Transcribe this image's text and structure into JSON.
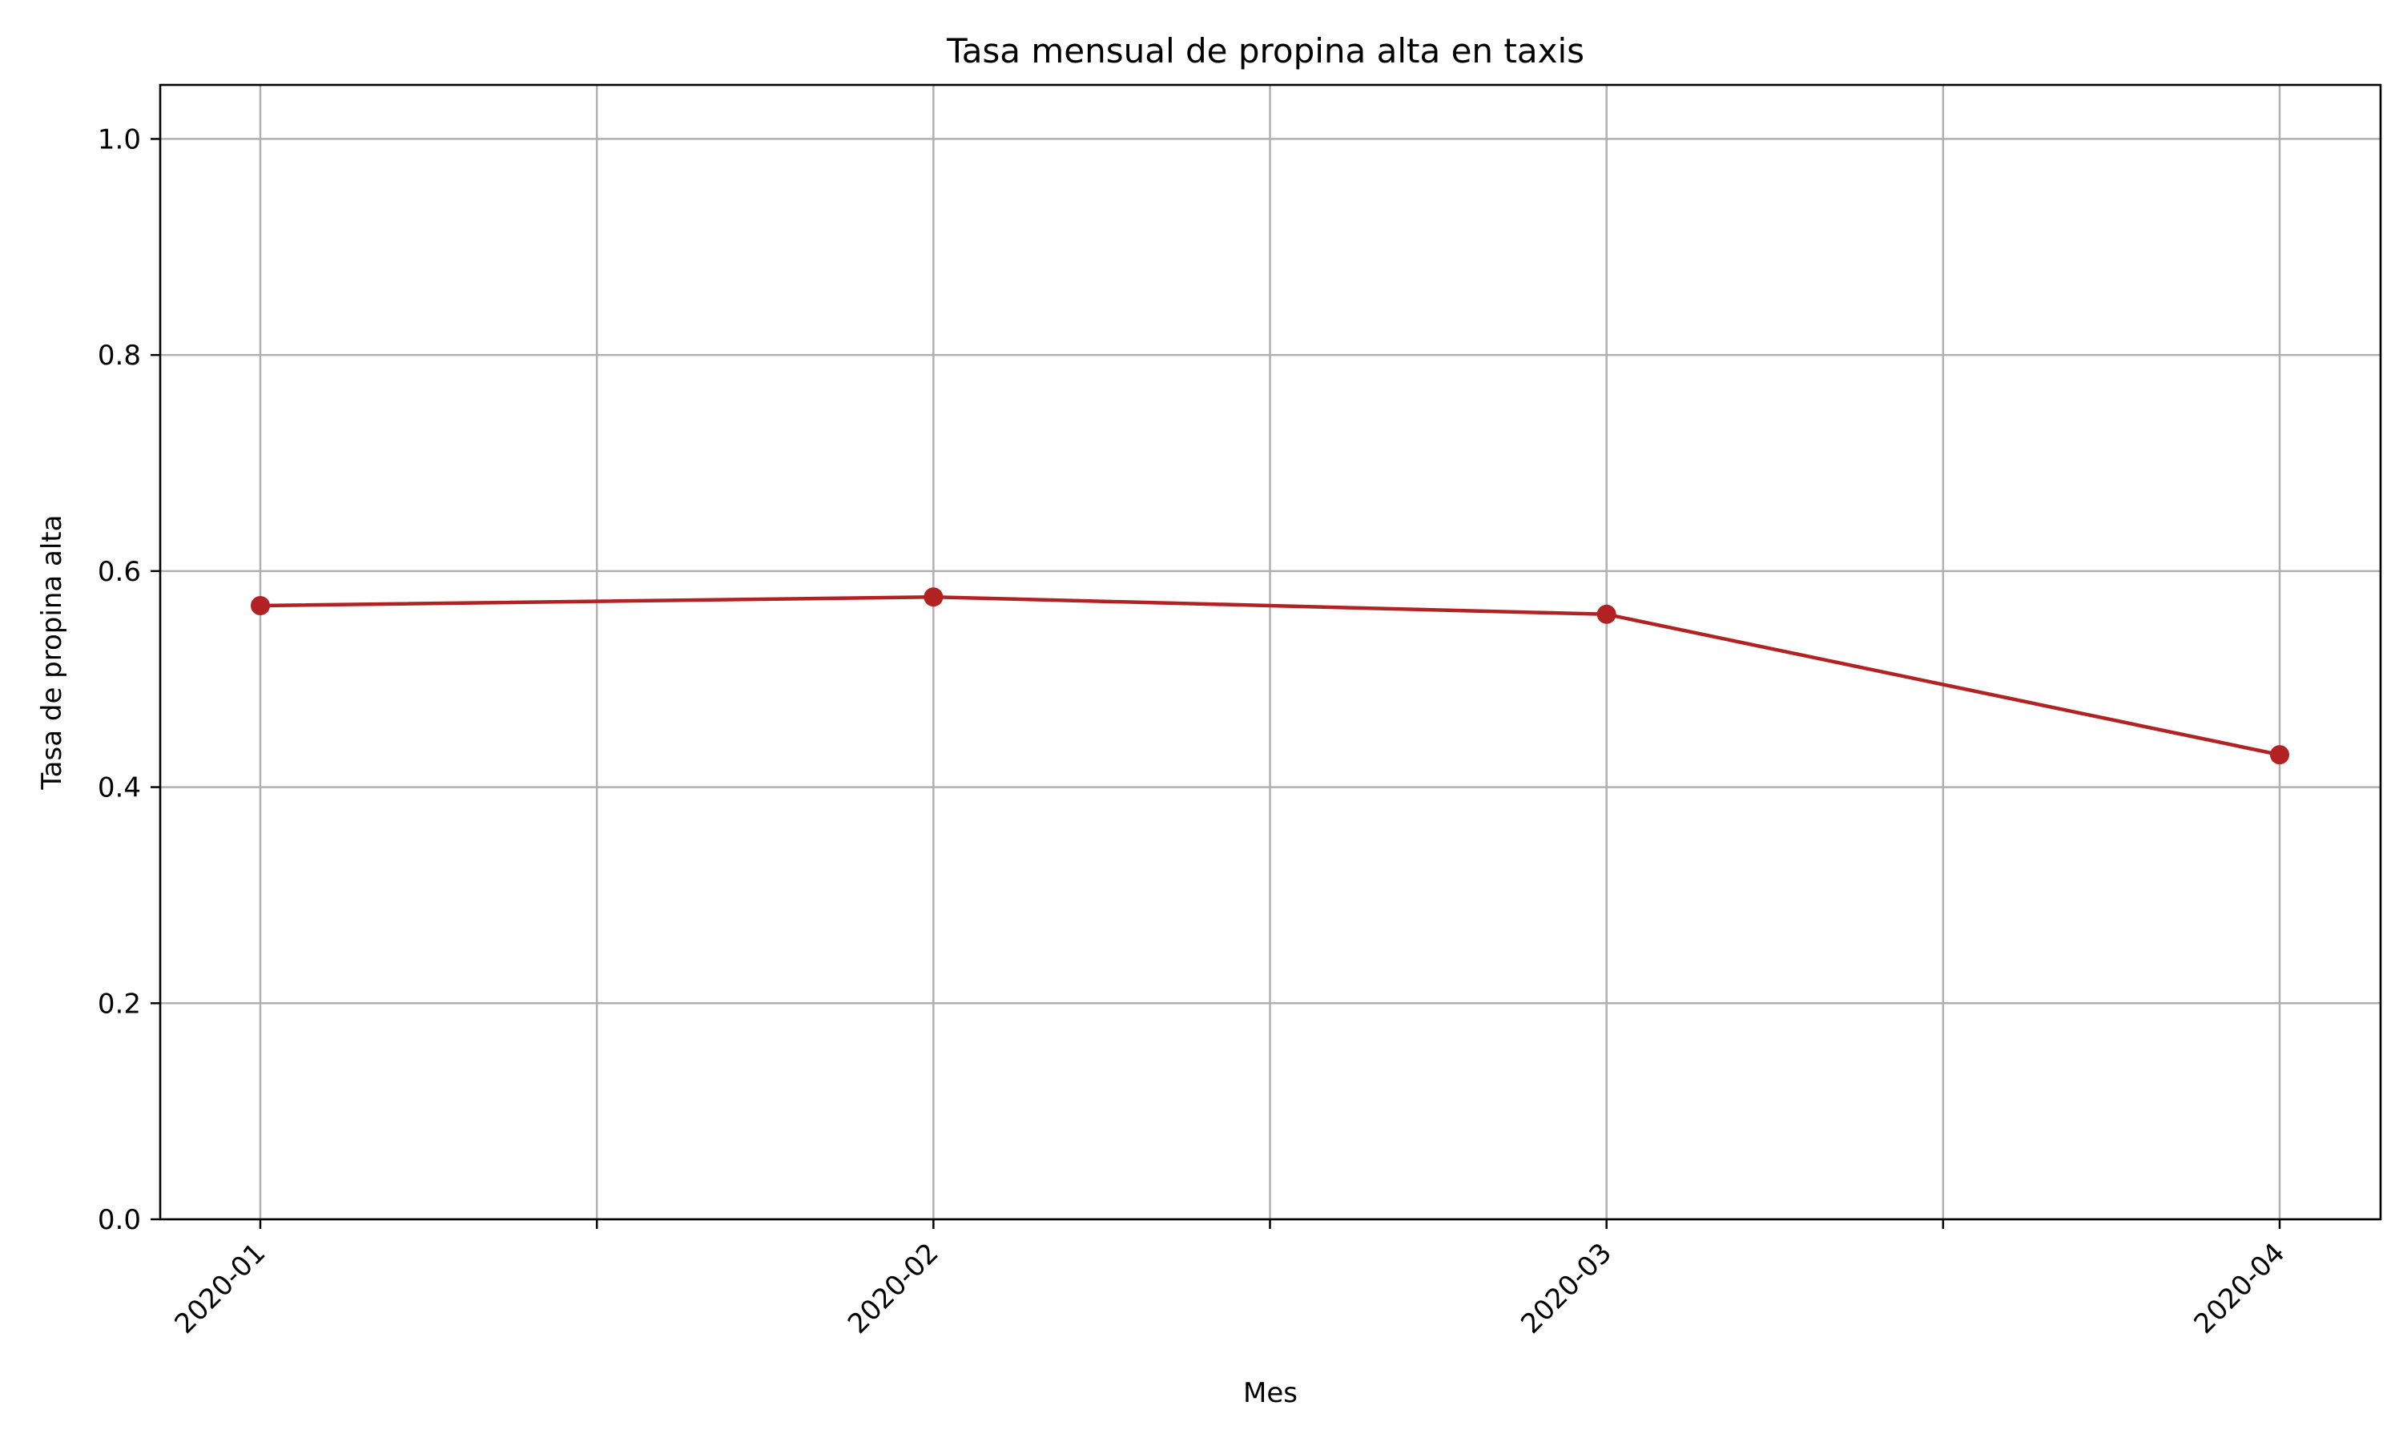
{
  "chart_data": {
    "type": "line",
    "title": "Tasa mensual de propina alta en taxis",
    "xlabel": "Mes",
    "ylabel": "Tasa de propina alta",
    "categories": [
      "2020-01",
      "2020-02",
      "2020-03",
      "2020-04"
    ],
    "series": [
      {
        "values": [
          0.568,
          0.576,
          0.56,
          0.43
        ],
        "color": "#b22222",
        "marker": "circle"
      }
    ],
    "ylim": [
      0.0,
      1.05
    ],
    "yticks": [
      0.0,
      0.2,
      0.4,
      0.6,
      0.8,
      1.0
    ],
    "ytick_labels": [
      "0.0",
      "0.2",
      "0.4",
      "0.6",
      "0.8",
      "1.0"
    ],
    "x_minor_ticks": true,
    "x_tick_rotation": 45,
    "grid": true,
    "legend": "none"
  }
}
